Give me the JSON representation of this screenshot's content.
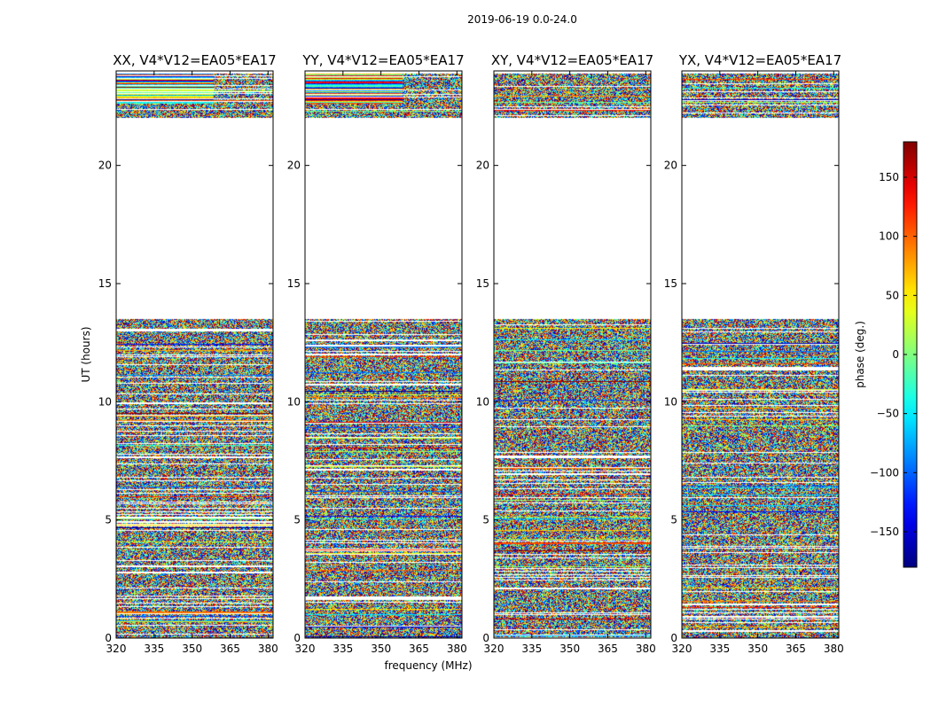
{
  "suptitle": "2019-06-19 0.0-24.0",
  "chart_data": {
    "type": "heatmap",
    "xlabel": "frequency (MHz)",
    "ylabel": "UT (hours)",
    "xlim": [
      320,
      382
    ],
    "ylim": [
      0,
      24
    ],
    "xticks": [
      320,
      335,
      350,
      365,
      380
    ],
    "yticks": [
      0,
      5,
      10,
      15,
      20
    ],
    "panels": [
      {
        "title": "XX, V4*V12=EA05*EA17",
        "pol": "XX"
      },
      {
        "title": "YY, V4*V12=EA05*EA17",
        "pol": "YY"
      },
      {
        "title": "XY, V4*V12=EA05*EA17",
        "pol": "XY"
      },
      {
        "title": "YX, V4*V12=EA05*EA17",
        "pol": "YX"
      }
    ],
    "colorbar": {
      "label": "phase (deg.)",
      "range": [
        -180,
        180
      ],
      "ticks": [
        150,
        100,
        50,
        0,
        -50,
        -100,
        -150
      ],
      "colormap": "jet"
    },
    "data_time_ranges_hours": [
      [
        0.0,
        13.5
      ],
      [
        22.0,
        23.9
      ]
    ],
    "empty_time_range_hours": [
      13.5,
      22.0
    ]
  }
}
